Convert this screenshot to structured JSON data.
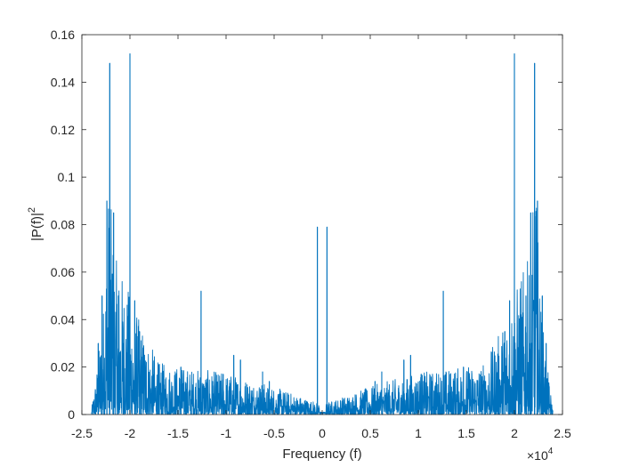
{
  "chart_data": {
    "type": "line",
    "title": "",
    "xlabel": "Frequency (f)",
    "ylabel_main": "|P(f)|",
    "ylabel_sup": "2",
    "x_exponent": {
      "base": "×10",
      "power": "4"
    },
    "xlim": [
      -25000,
      25000
    ],
    "ylim": [
      0,
      0.16
    ],
    "x_ticks": [
      {
        "value": -25000,
        "label": "-2.5"
      },
      {
        "value": -20000,
        "label": "-2"
      },
      {
        "value": -15000,
        "label": "-1.5"
      },
      {
        "value": -10000,
        "label": "-1"
      },
      {
        "value": -5000,
        "label": "-0.5"
      },
      {
        "value": 0,
        "label": "0"
      },
      {
        "value": 5000,
        "label": "0.5"
      },
      {
        "value": 10000,
        "label": "1"
      },
      {
        "value": 15000,
        "label": "1.5"
      },
      {
        "value": 20000,
        "label": "2"
      },
      {
        "value": 25000,
        "label": "2.5"
      }
    ],
    "y_ticks": [
      {
        "value": 0,
        "label": "0"
      },
      {
        "value": 0.02,
        "label": "0.02"
      },
      {
        "value": 0.04,
        "label": "0.04"
      },
      {
        "value": 0.06,
        "label": "0.06"
      },
      {
        "value": 0.08,
        "label": "0.08"
      },
      {
        "value": 0.1,
        "label": "0.1"
      },
      {
        "value": 0.12,
        "label": "0.12"
      },
      {
        "value": 0.14,
        "label": "0.14"
      },
      {
        "value": 0.16,
        "label": "0.16"
      }
    ],
    "grid": false,
    "box": true,
    "symmetric_about_zero": true,
    "x_data_range": [
      -24000,
      24000
    ],
    "series": [
      {
        "color": "#0072BD",
        "peaks": [
          {
            "x": 500,
            "y": 0.079
          },
          {
            "x": 5500,
            "y": 0.014
          },
          {
            "x": 6200,
            "y": 0.018
          },
          {
            "x": 8500,
            "y": 0.023
          },
          {
            "x": 9200,
            "y": 0.025
          },
          {
            "x": 10300,
            "y": 0.017
          },
          {
            "x": 11400,
            "y": 0.014
          },
          {
            "x": 12600,
            "y": 0.052
          },
          {
            "x": 14700,
            "y": 0.02
          },
          {
            "x": 17000,
            "y": 0.014
          },
          {
            "x": 18300,
            "y": 0.022
          },
          {
            "x": 19000,
            "y": 0.035
          },
          {
            "x": 19500,
            "y": 0.048
          },
          {
            "x": 20000,
            "y": 0.152
          },
          {
            "x": 20700,
            "y": 0.03
          },
          {
            "x": 21200,
            "y": 0.05
          },
          {
            "x": 21700,
            "y": 0.085
          },
          {
            "x": 22100,
            "y": 0.148
          },
          {
            "x": 22400,
            "y": 0.09
          },
          {
            "x": 22900,
            "y": 0.05
          },
          {
            "x": 23300,
            "y": 0.03
          }
        ],
        "envelope": [
          {
            "x": 0,
            "y": 0.002
          },
          {
            "x": 3000,
            "y": 0.004
          },
          {
            "x": 6000,
            "y": 0.006
          },
          {
            "x": 10000,
            "y": 0.008
          },
          {
            "x": 14000,
            "y": 0.009
          },
          {
            "x": 17000,
            "y": 0.01
          },
          {
            "x": 19000,
            "y": 0.018
          },
          {
            "x": 20500,
            "y": 0.026
          },
          {
            "x": 21500,
            "y": 0.03
          },
          {
            "x": 22200,
            "y": 0.045
          },
          {
            "x": 22800,
            "y": 0.02
          },
          {
            "x": 23500,
            "y": 0.008
          },
          {
            "x": 24000,
            "y": 0.001
          }
        ]
      }
    ]
  }
}
